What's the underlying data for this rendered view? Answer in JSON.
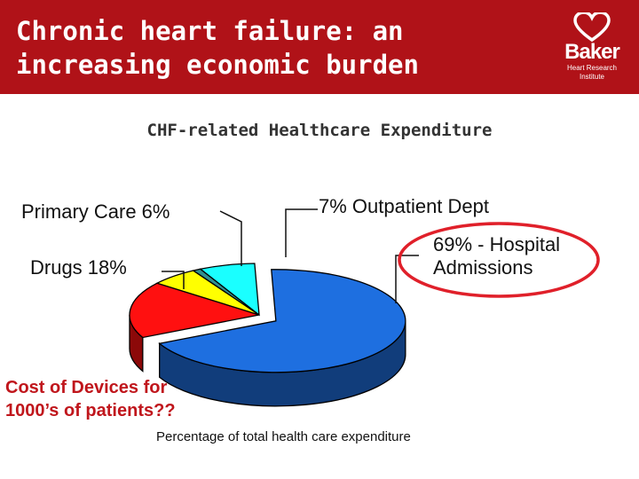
{
  "slide": {
    "title_line1": "Chronic heart failure: an",
    "title_line2": "increasing economic burden",
    "logo_word": "Baker",
    "logo_tagline": "Heart Research Institute",
    "note_line1": "Cost of Devices for",
    "note_line2": "1000’s of patients??"
  },
  "colors": {
    "header": "#b01218",
    "hospital": "#1e6fe0",
    "drugs": "#ff1010",
    "primary_care": "#ffff00",
    "other": "#2f8f8f",
    "outpatient": "#1affff",
    "highlight_ellipse": "#e0202a"
  },
  "chart_data": {
    "type": "pie",
    "title": "CHF-related Healthcare Expenditure",
    "xlabel": "Percentage of total health care expenditure",
    "slices": [
      {
        "name": "Hospital Admissions",
        "value": 69,
        "label_text": "69% - Hospital Admissions",
        "label_line1": "69% - Hospital",
        "label_line2": "Admissions",
        "color": "#1e6fe0",
        "explode": 1
      },
      {
        "name": "Drugs",
        "value": 18,
        "label_text": "Drugs 18%",
        "color": "#ff1010",
        "explode": 0
      },
      {
        "name": "Primary Care",
        "value": 6,
        "label_text": "Primary Care 6%",
        "color": "#ffff00",
        "explode": 0
      },
      {
        "name": "Unlabeled",
        "value": 1,
        "label_text": "",
        "color": "#2f8f8f",
        "explode": 0
      },
      {
        "name": "Outpatient Dept",
        "value": 7,
        "label_text": "7% Outpatient Dept",
        "color": "#1affff",
        "explode": 0
      }
    ]
  }
}
